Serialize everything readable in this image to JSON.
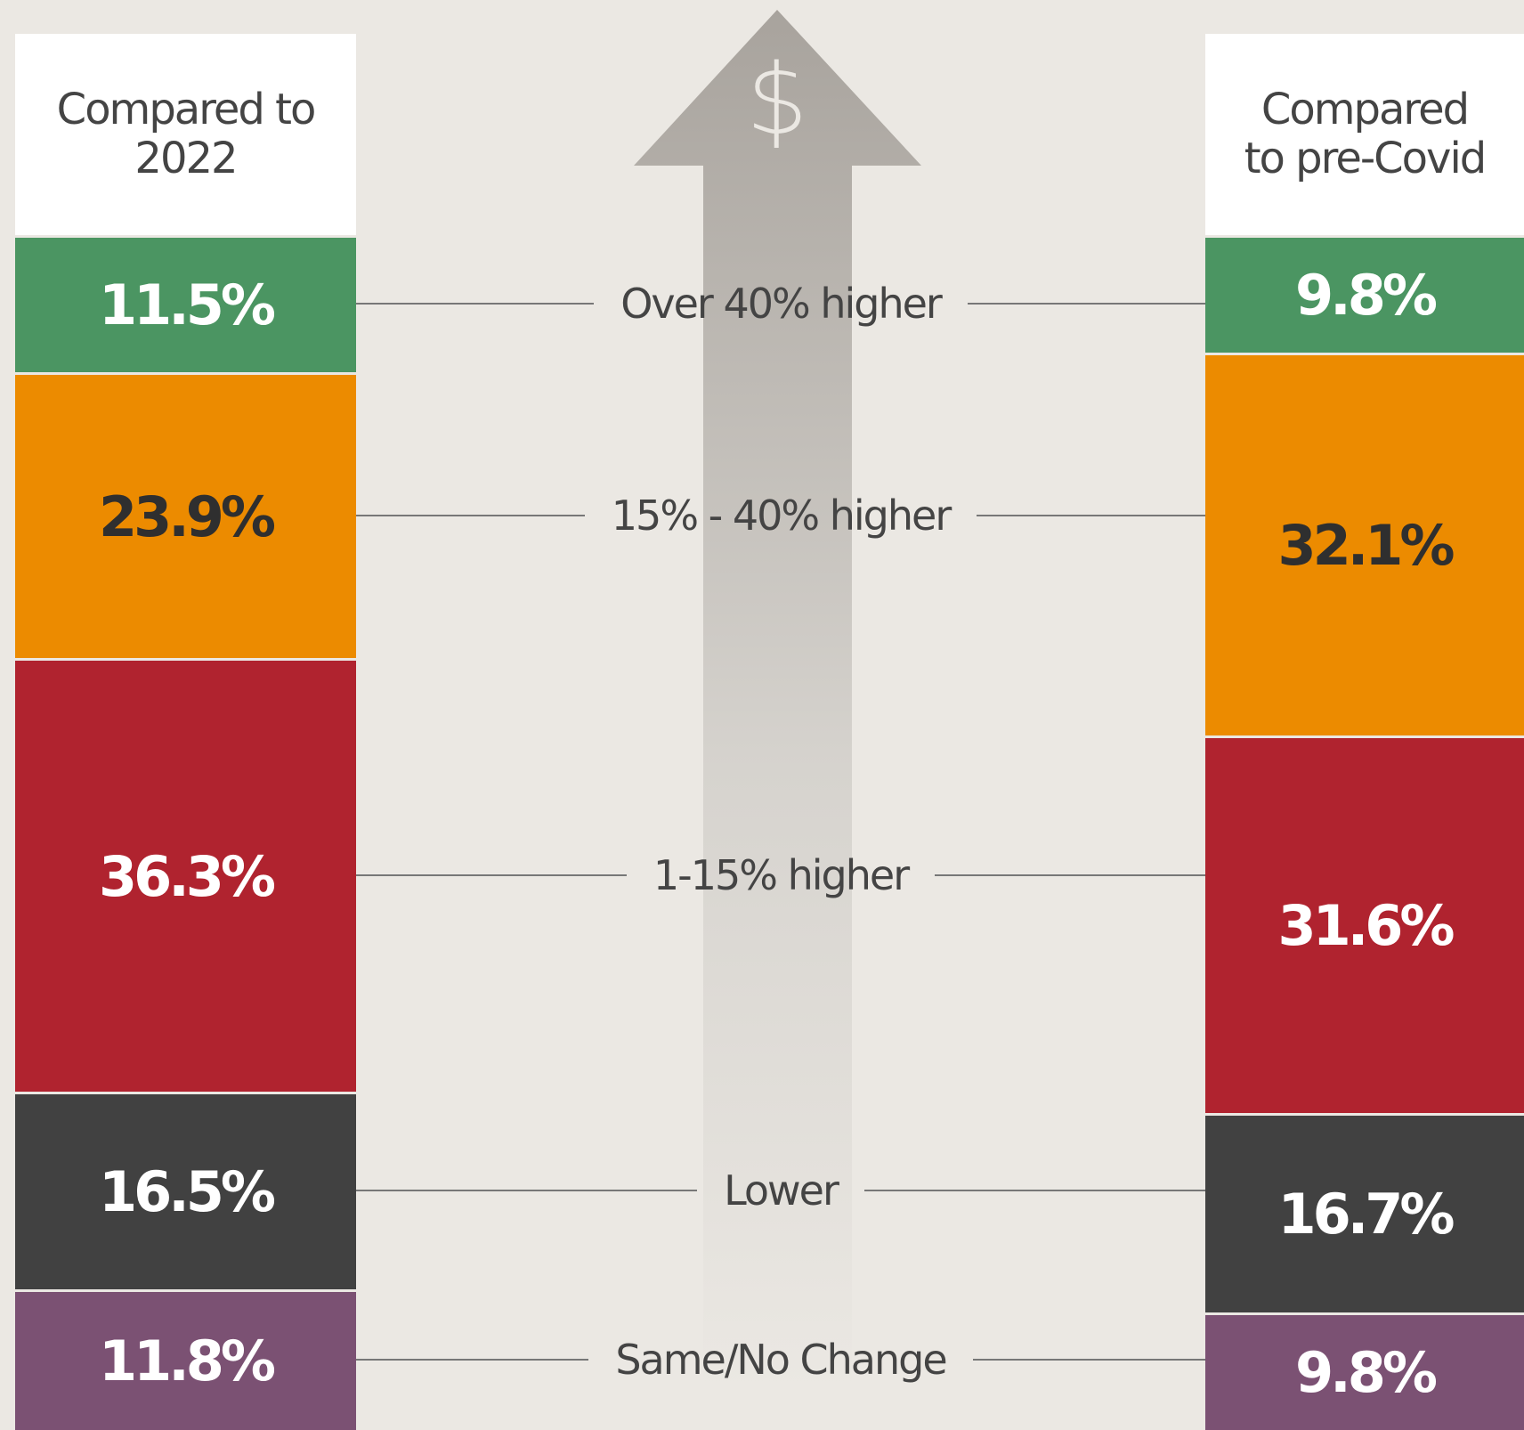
{
  "chart_data": {
    "type": "stacked_column",
    "categories": [
      "Over 40% higher",
      "15% - 40% higher",
      "1-15% higher",
      "Lower",
      "Same/No Change"
    ],
    "colors": [
      "#4b9562",
      "#ec8b00",
      "#b0232f",
      "#414141",
      "#7b5173"
    ],
    "label_colors": [
      "#ffffff",
      "#2f2f2f",
      "#ffffff",
      "#ffffff",
      "#ffffff"
    ],
    "series": [
      {
        "name": "Compared to 2022",
        "values": [
          11.5,
          23.9,
          36.3,
          16.5,
          11.8
        ],
        "value_labels": [
          "11.5%",
          "23.9%",
          "36.3%",
          "16.5%",
          "11.8%"
        ]
      },
      {
        "name": "Compared to pre-Covid",
        "values": [
          9.8,
          32.1,
          31.6,
          16.7,
          9.8
        ],
        "value_labels": [
          "9.8%",
          "32.1%",
          "31.6%",
          "16.7%",
          "9.8%"
        ]
      }
    ]
  }
}
